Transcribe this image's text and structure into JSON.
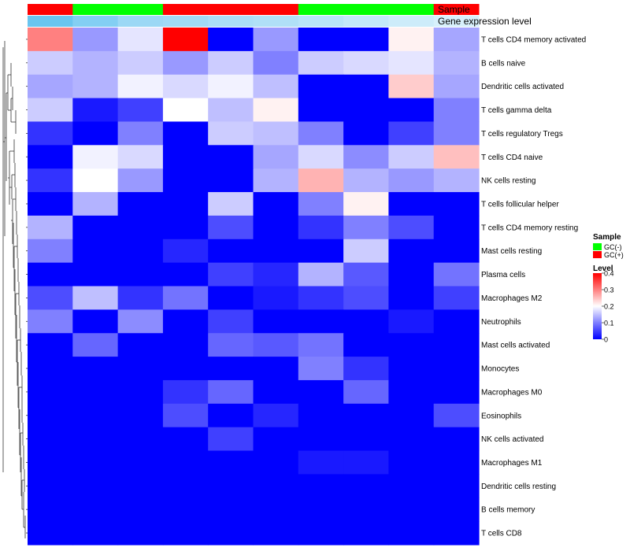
{
  "chart_data": {
    "type": "heatmap",
    "annotation_titles": [
      "Sample",
      "Gene expression level"
    ],
    "sample_groups": [
      "GC(+)",
      "GC(-)",
      "GC(-)",
      "GC(+)",
      "GC(+)",
      "GC(+)",
      "GC(-)",
      "GC(-)",
      "GC(-)",
      "GC(+)"
    ],
    "expression_levels": [
      0.3,
      0.25,
      0.2,
      0.19,
      0.17,
      0.16,
      0.14,
      0.12,
      0.1,
      0.08
    ],
    "rows": [
      "T cells CD4 memory activated",
      "B cells naive",
      "Dendritic cells activated",
      "T cells gamma delta",
      "T cells regulatory  Tregs",
      "T cells CD4 naive",
      "NK cells resting",
      "T cells follicular helper",
      "T cells CD4 memory resting",
      "Mast cells resting",
      "Plasma cells",
      "Macrophages M2",
      "Neutrophils",
      "Mast cells activated",
      "Monocytes",
      "Macrophages M0",
      "Eosinophils",
      "NK cells activated",
      "Macrophages M1",
      "Dendritic cells resting",
      "B cells memory",
      "T cells CD8"
    ],
    "values": [
      [
        0.3,
        0.12,
        0.18,
        0.4,
        0.0,
        0.12,
        0.0,
        0.0,
        0.21,
        0.13
      ],
      [
        0.16,
        0.14,
        0.16,
        0.12,
        0.16,
        0.1,
        0.16,
        0.17,
        0.18,
        0.14
      ],
      [
        0.13,
        0.14,
        0.19,
        0.17,
        0.19,
        0.15,
        0.0,
        0.0,
        0.24,
        0.13
      ],
      [
        0.16,
        0.02,
        0.05,
        0.2,
        0.15,
        0.21,
        0.0,
        0.0,
        0.0,
        0.1
      ],
      [
        0.04,
        0.0,
        0.1,
        0.0,
        0.16,
        0.15,
        0.1,
        0.0,
        0.05,
        0.1
      ],
      [
        0.0,
        0.19,
        0.17,
        0.0,
        0.0,
        0.13,
        0.17,
        0.11,
        0.16,
        0.25
      ],
      [
        0.04,
        0.2,
        0.12,
        0.0,
        0.0,
        0.14,
        0.26,
        0.14,
        0.12,
        0.14
      ],
      [
        0.0,
        0.14,
        0.0,
        0.0,
        0.16,
        0.0,
        0.1,
        0.21,
        0.0,
        0.0
      ],
      [
        0.14,
        0.0,
        0.0,
        0.0,
        0.06,
        0.0,
        0.04,
        0.1,
        0.06,
        0.0
      ],
      [
        0.1,
        0.0,
        0.0,
        0.03,
        0.0,
        0.0,
        0.0,
        0.16,
        0.0,
        0.0
      ],
      [
        0.0,
        0.0,
        0.0,
        0.0,
        0.05,
        0.03,
        0.14,
        0.07,
        0.0,
        0.09
      ],
      [
        0.06,
        0.15,
        0.04,
        0.09,
        0.0,
        0.02,
        0.04,
        0.06,
        0.0,
        0.05
      ],
      [
        0.1,
        0.0,
        0.11,
        0.0,
        0.05,
        0.0,
        0.0,
        0.0,
        0.02,
        0.0
      ],
      [
        0.0,
        0.08,
        0.0,
        0.0,
        0.08,
        0.07,
        0.09,
        0.0,
        0.0,
        0.0
      ],
      [
        0.0,
        0.0,
        0.0,
        0.0,
        0.0,
        0.0,
        0.1,
        0.04,
        0.0,
        0.0
      ],
      [
        0.0,
        0.0,
        0.0,
        0.04,
        0.08,
        0.0,
        0.0,
        0.08,
        0.0,
        0.0
      ],
      [
        0.0,
        0.0,
        0.0,
        0.06,
        0.0,
        0.03,
        0.0,
        0.0,
        0.0,
        0.06
      ],
      [
        0.0,
        0.0,
        0.0,
        0.0,
        0.05,
        0.0,
        0.0,
        0.0,
        0.0,
        0.0
      ],
      [
        0.0,
        0.0,
        0.0,
        0.0,
        0.0,
        0.0,
        0.02,
        0.02,
        0.0,
        0.0
      ],
      [
        0.0,
        0.0,
        0.0,
        0.0,
        0.0,
        0.0,
        0.0,
        0.0,
        0.0,
        0.0
      ],
      [
        0.0,
        0.0,
        0.0,
        0.0,
        0.0,
        0.0,
        0.0,
        0.0,
        0.0,
        0.0
      ],
      [
        0.0,
        0.0,
        0.0,
        0.0,
        0.0,
        0.0,
        0.0,
        0.0,
        0.0,
        0.0
      ]
    ],
    "color_scale": {
      "min": 0,
      "max": 0.4,
      "low": "#0000ff",
      "mid": "#ffffff",
      "mid_value": 0.2,
      "high": "#ff0000"
    },
    "level_range": [
      0,
      0.3
    ],
    "level_colors": {
      "low": "#ffffff",
      "high": "#6ac5f0"
    },
    "legend": {
      "sample_title": "Sample",
      "sample_entries": [
        {
          "label": "GC(-)",
          "color": "#00ff00"
        },
        {
          "label": "GC(+)",
          "color": "#ff0000"
        }
      ],
      "level_title": "Level",
      "level_ticks": [
        "0.4",
        "0.3",
        "0.2",
        "0.1",
        "0"
      ],
      "placement": "right"
    }
  }
}
